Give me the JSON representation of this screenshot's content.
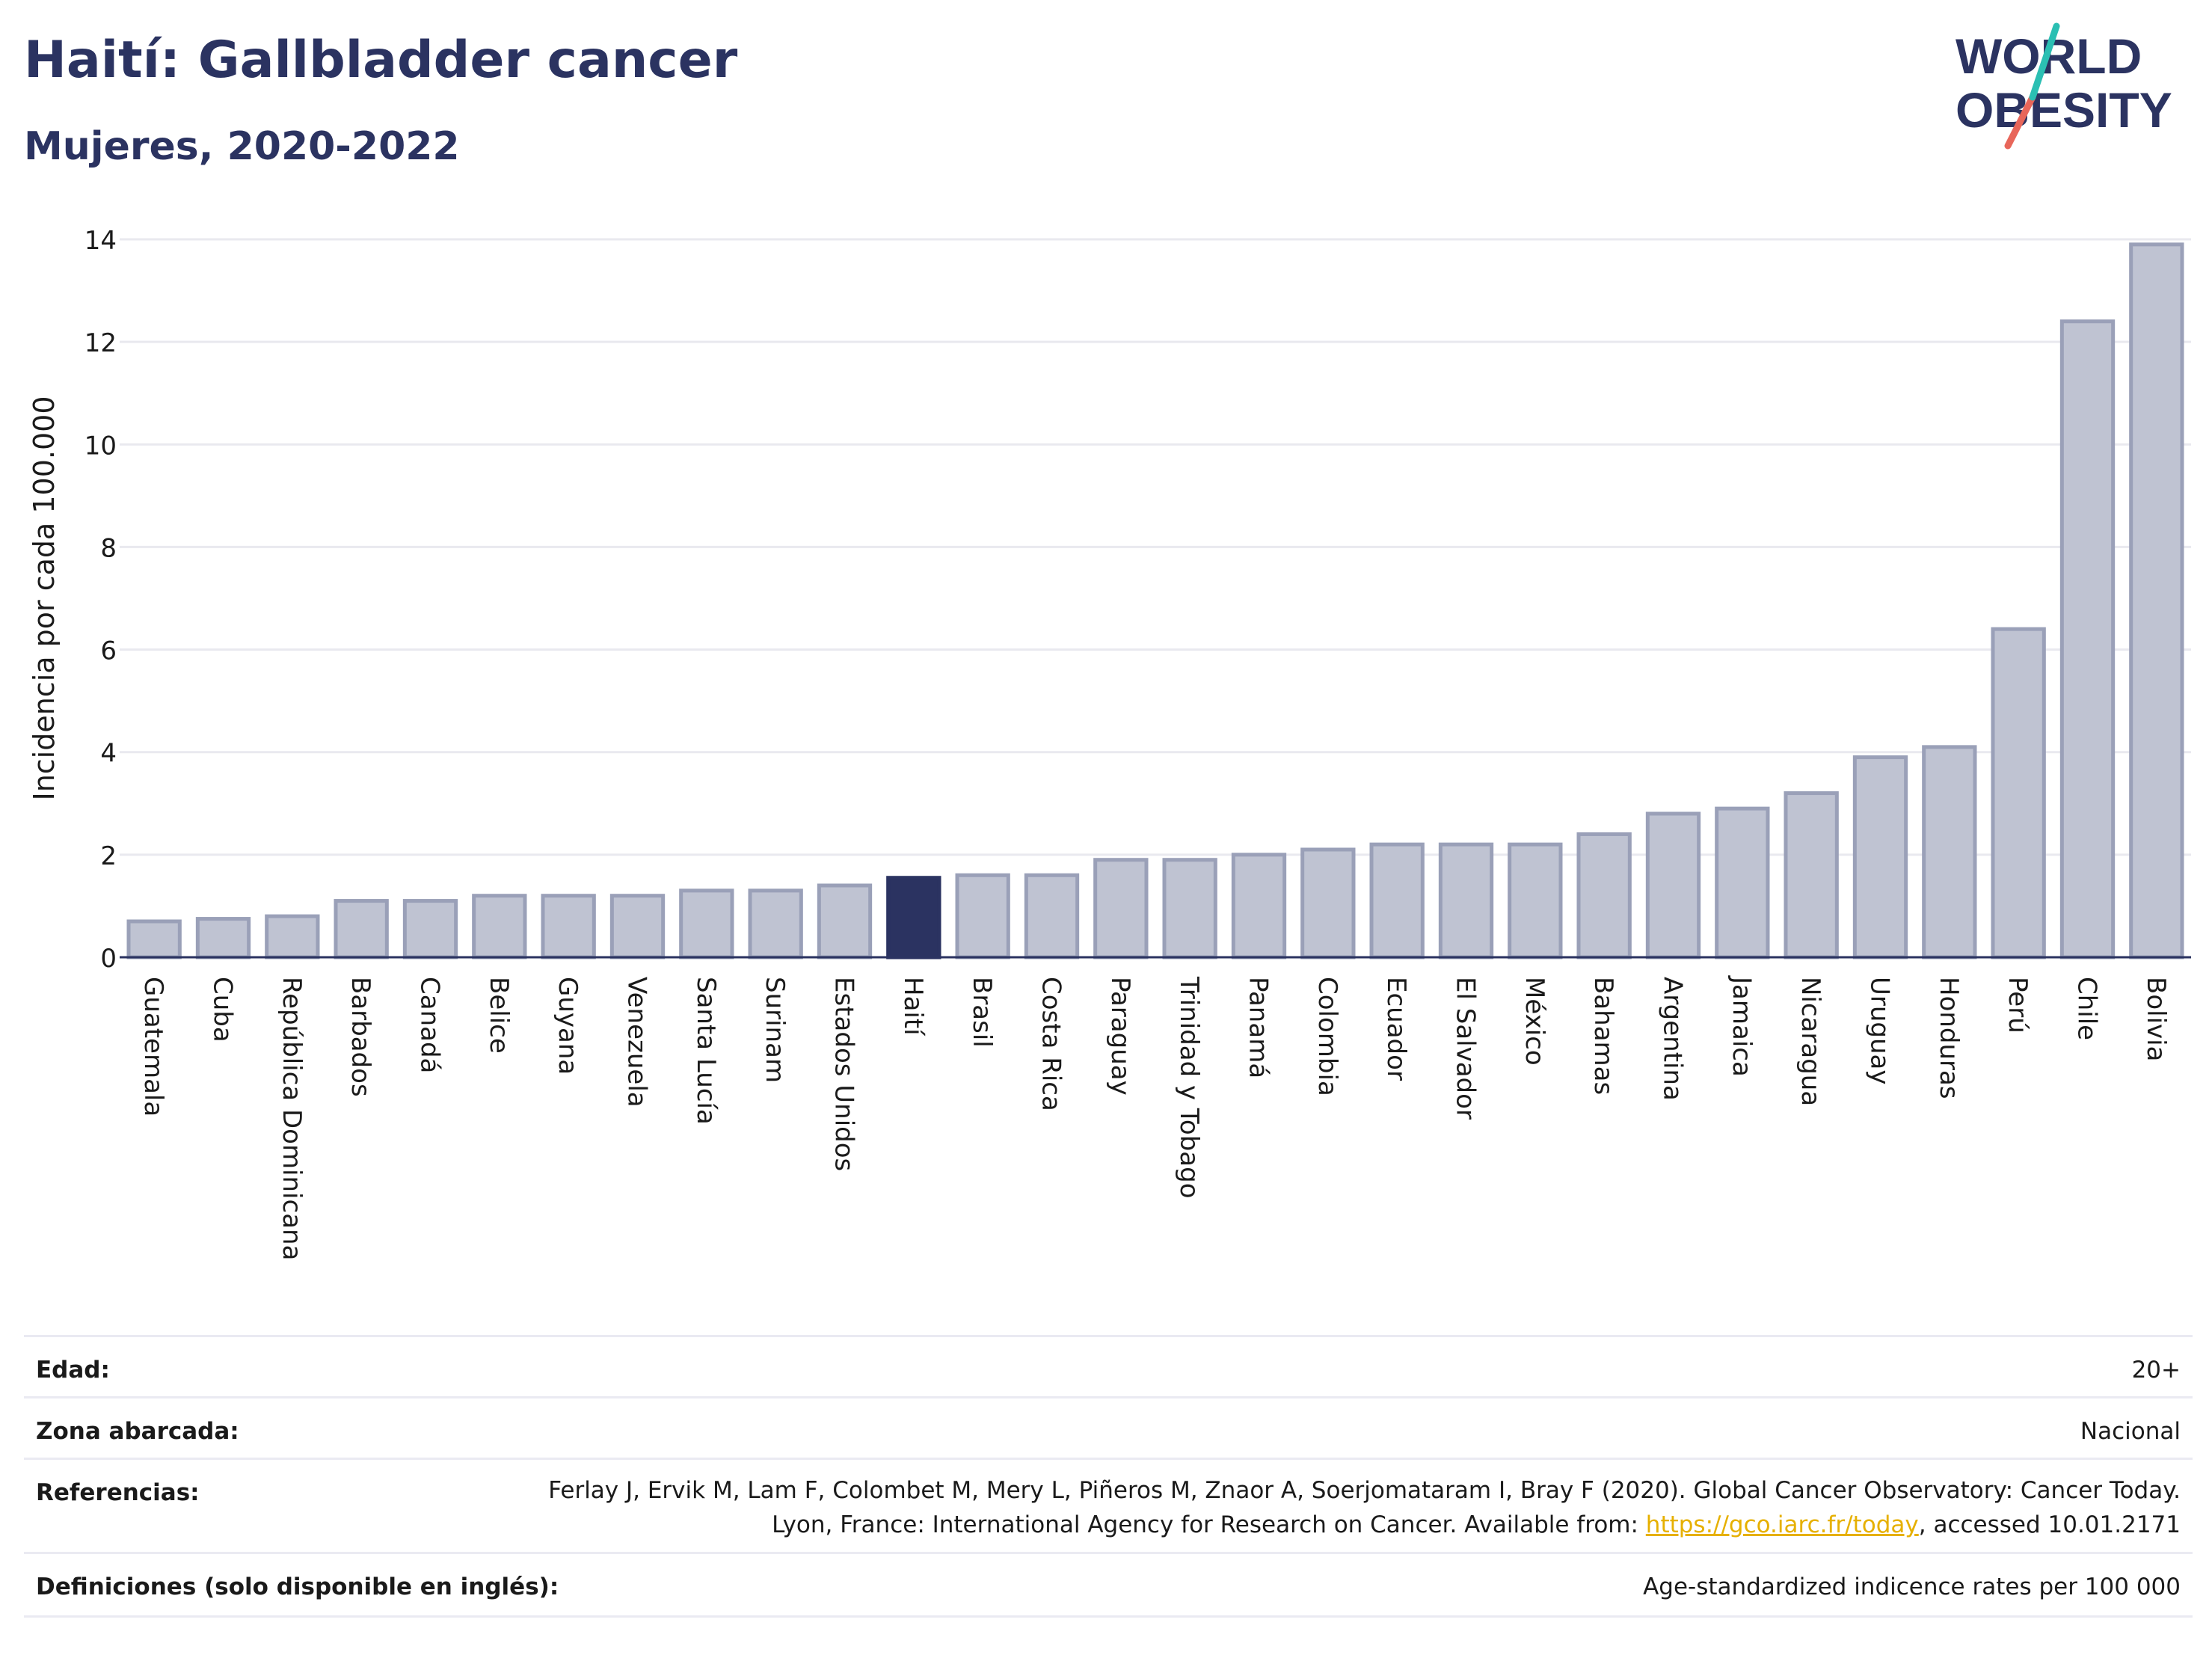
{
  "header": {
    "title": "Haití: Gallbladder cancer",
    "subtitle": "Mujeres, 2020-2022"
  },
  "logo": {
    "line1": "WORLD",
    "line2": "OBESITY",
    "slash_colors": [
      "#2bbfb3",
      "#e8665a"
    ]
  },
  "chart_data": {
    "type": "bar",
    "ylabel": "Incidencia por cada 100.000",
    "xlabel": "",
    "ylim": [
      0,
      14
    ],
    "yticks": [
      0,
      2,
      4,
      6,
      8,
      10,
      12,
      14
    ],
    "grid": true,
    "highlight": "Haití",
    "colors": {
      "bar": "#bfc3d2",
      "bar_border": "#9aa0b8",
      "highlight": "#2b3361"
    },
    "categories": [
      "Guatemala",
      "Cuba",
      "República Dominicana",
      "Barbados",
      "Canadá",
      "Belice",
      "Guyana",
      "Venezuela",
      "Santa Lucía",
      "Surinam",
      "Estados Unidos",
      "Haití",
      "Brasil",
      "Costa Rica",
      "Paraguay",
      "Trinidad y Tobago",
      "Panamá",
      "Colombia",
      "Ecuador",
      "El Salvador",
      "México",
      "Bahamas",
      "Argentina",
      "Jamaica",
      "Nicaragua",
      "Uruguay",
      "Honduras",
      "Perú",
      "Chile",
      "Bolivia"
    ],
    "values": [
      0.7,
      0.75,
      0.8,
      1.1,
      1.1,
      1.2,
      1.2,
      1.2,
      1.3,
      1.3,
      1.4,
      1.55,
      1.6,
      1.6,
      1.9,
      1.9,
      2.0,
      2.1,
      2.2,
      2.2,
      2.2,
      2.4,
      2.8,
      2.9,
      3.2,
      3.9,
      4.1,
      6.4,
      12.4,
      13.9
    ]
  },
  "info": {
    "age_label": "Edad:",
    "age_value": "20+",
    "zone_label": "Zona abarcada:",
    "zone_value": "Nacional",
    "refs_label": "Referencias:",
    "refs_text1": "Ferlay J, Ervik M, Lam F, Colombet M, Mery L, Piñeros M, Znaor A, Soerjomataram I, Bray F (2020). Global Cancer Observatory: Cancer Today. Lyon, France: International Agency for Research on Cancer. Available from: ",
    "refs_link": "https://gco.iarc.fr/today",
    "refs_text2": ", accessed 10.01.2171",
    "defs_label": "Definiciones (solo disponible en inglés):",
    "defs_value": "Age-standardized indicence rates per 100 000"
  }
}
